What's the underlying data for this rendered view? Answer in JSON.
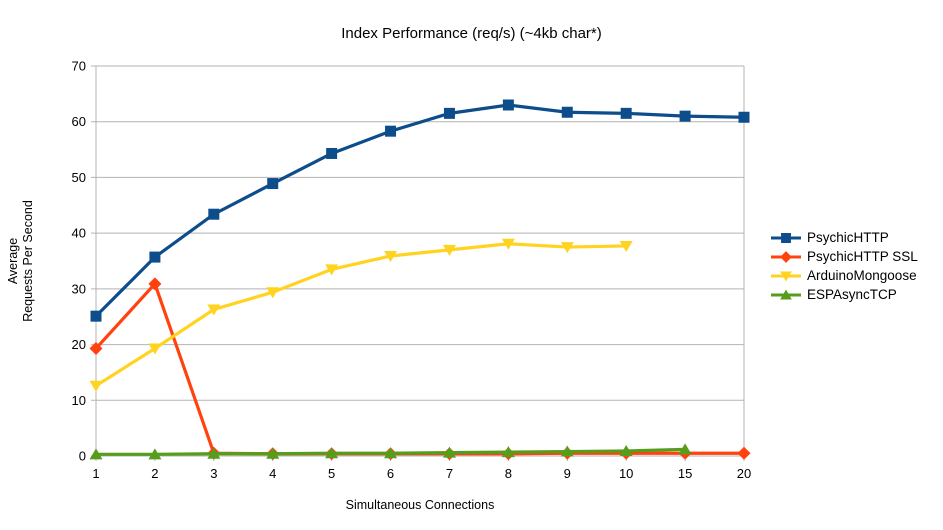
{
  "chart_data": {
    "type": "line",
    "title": "Index Performance (req/s) (~4kb char*)",
    "xlabel": "Simultaneous Connections",
    "ylabel_lines": [
      "Average",
      "Requests Per Second"
    ],
    "x": [
      1,
      2,
      3,
      4,
      5,
      6,
      7,
      8,
      9,
      10,
      15,
      20
    ],
    "x_axis_type": "categorical",
    "ylim": [
      0,
      70
    ],
    "ytick_step": 10,
    "grid": "horizontal-only",
    "grid_color": "#b3b3b3",
    "legend_position": "right",
    "series": [
      {
        "name": "PsychicHTTP",
        "color": "#0d4d8c",
        "marker": "square",
        "values": [
          25.1,
          35.7,
          43.4,
          48.9,
          54.3,
          58.3,
          61.5,
          63.0,
          61.7,
          61.5,
          61.0,
          60.8
        ]
      },
      {
        "name": "PsychicHTTP SSL",
        "color": "#ff420e",
        "marker": "diamond",
        "values": [
          19.3,
          30.9,
          0.5,
          0.4,
          0.4,
          0.4,
          0.4,
          0.4,
          0.5,
          0.5,
          0.5,
          0.5
        ]
      },
      {
        "name": "ArduinoMongoose",
        "color": "#ffd320",
        "marker": "triangle-down",
        "values": [
          12.6,
          19.3,
          26.3,
          29.4,
          33.5,
          35.9,
          37.0,
          38.1,
          37.5,
          37.7,
          null,
          null
        ]
      },
      {
        "name": "ESPAsyncTCP",
        "color": "#579d1c",
        "marker": "triangle-up",
        "values": [
          0.3,
          0.3,
          0.4,
          0.4,
          0.5,
          0.5,
          0.6,
          0.7,
          0.8,
          0.9,
          1.2,
          null
        ]
      }
    ]
  }
}
